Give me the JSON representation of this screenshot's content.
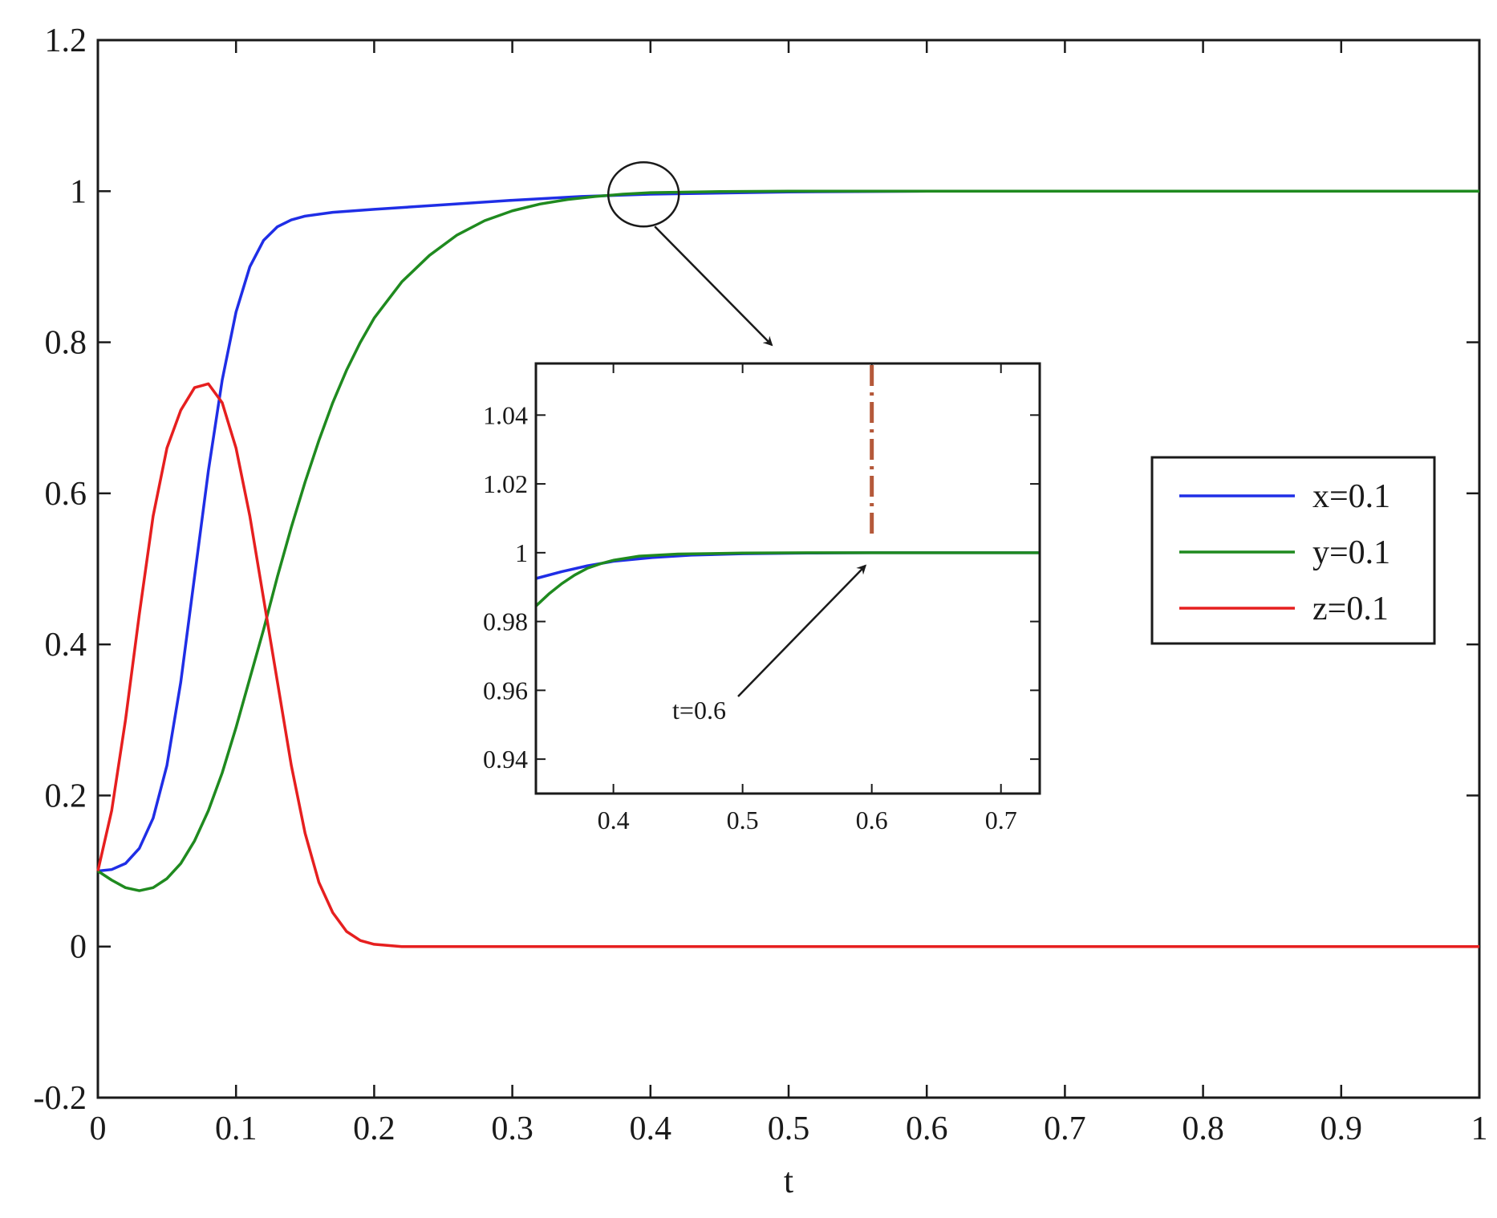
{
  "chart_data": {
    "type": "line",
    "title": "",
    "xlabel": "t",
    "ylabel": "",
    "xlim": [
      0,
      1
    ],
    "ylim": [
      -0.2,
      1.2
    ],
    "x_ticks": [
      "0",
      "0.1",
      "0.2",
      "0.3",
      "0.4",
      "0.5",
      "0.6",
      "0.7",
      "0.8",
      "0.9",
      "1"
    ],
    "y_ticks": [
      "-0.2",
      "0",
      "0.2",
      "0.4",
      "0.6",
      "0.8",
      "1",
      "1.2"
    ],
    "grid": false,
    "legend_position": "right",
    "colors": {
      "x": "#1f2ee6",
      "y": "#1f8a1f",
      "z": "#e61f1f",
      "marker": "#b5593a"
    },
    "series": [
      {
        "name": "x=0.1",
        "color": "#1f2ee6",
        "points": [
          [
            0,
            0.1
          ],
          [
            0.01,
            0.102
          ],
          [
            0.02,
            0.11
          ],
          [
            0.03,
            0.13
          ],
          [
            0.04,
            0.17
          ],
          [
            0.05,
            0.24
          ],
          [
            0.06,
            0.35
          ],
          [
            0.07,
            0.49
          ],
          [
            0.08,
            0.63
          ],
          [
            0.09,
            0.75
          ],
          [
            0.1,
            0.84
          ],
          [
            0.11,
            0.9
          ],
          [
            0.12,
            0.935
          ],
          [
            0.13,
            0.953
          ],
          [
            0.14,
            0.962
          ],
          [
            0.15,
            0.967
          ],
          [
            0.17,
            0.972
          ],
          [
            0.2,
            0.976
          ],
          [
            0.25,
            0.982
          ],
          [
            0.3,
            0.988
          ],
          [
            0.35,
            0.993
          ],
          [
            0.4,
            0.996
          ],
          [
            0.5,
            0.999
          ],
          [
            0.6,
            1.0
          ],
          [
            0.8,
            1.0
          ],
          [
            1.0,
            1.0
          ]
        ]
      },
      {
        "name": "y=0.1",
        "color": "#1f8a1f",
        "points": [
          [
            0,
            0.1
          ],
          [
            0.01,
            0.088
          ],
          [
            0.02,
            0.078
          ],
          [
            0.03,
            0.074
          ],
          [
            0.04,
            0.078
          ],
          [
            0.05,
            0.09
          ],
          [
            0.06,
            0.11
          ],
          [
            0.07,
            0.14
          ],
          [
            0.08,
            0.18
          ],
          [
            0.09,
            0.23
          ],
          [
            0.1,
            0.29
          ],
          [
            0.11,
            0.355
          ],
          [
            0.12,
            0.42
          ],
          [
            0.13,
            0.49
          ],
          [
            0.14,
            0.555
          ],
          [
            0.15,
            0.615
          ],
          [
            0.16,
            0.67
          ],
          [
            0.17,
            0.72
          ],
          [
            0.18,
            0.763
          ],
          [
            0.19,
            0.8
          ],
          [
            0.2,
            0.832
          ],
          [
            0.22,
            0.88
          ],
          [
            0.24,
            0.915
          ],
          [
            0.26,
            0.942
          ],
          [
            0.28,
            0.961
          ],
          [
            0.3,
            0.974
          ],
          [
            0.32,
            0.983
          ],
          [
            0.34,
            0.989
          ],
          [
            0.36,
            0.993
          ],
          [
            0.38,
            0.996
          ],
          [
            0.4,
            0.998
          ],
          [
            0.45,
            0.9995
          ],
          [
            0.5,
            1.0
          ],
          [
            0.7,
            1.0
          ],
          [
            1.0,
            1.0
          ]
        ]
      },
      {
        "name": "z=0.1",
        "color": "#e61f1f",
        "points": [
          [
            0,
            0.1
          ],
          [
            0.01,
            0.18
          ],
          [
            0.02,
            0.3
          ],
          [
            0.03,
            0.44
          ],
          [
            0.04,
            0.57
          ],
          [
            0.05,
            0.66
          ],
          [
            0.06,
            0.71
          ],
          [
            0.07,
            0.74
          ],
          [
            0.08,
            0.745
          ],
          [
            0.09,
            0.72
          ],
          [
            0.1,
            0.66
          ],
          [
            0.11,
            0.57
          ],
          [
            0.12,
            0.46
          ],
          [
            0.13,
            0.35
          ],
          [
            0.14,
            0.24
          ],
          [
            0.15,
            0.15
          ],
          [
            0.16,
            0.085
          ],
          [
            0.17,
            0.045
          ],
          [
            0.18,
            0.02
          ],
          [
            0.19,
            0.008
          ],
          [
            0.2,
            0.003
          ],
          [
            0.22,
            0.0
          ],
          [
            0.3,
            0.0
          ],
          [
            0.6,
            0.0
          ],
          [
            1.0,
            0.0
          ]
        ]
      }
    ],
    "inset": {
      "xlim": [
        0.34,
        0.73
      ],
      "ylim": [
        0.93,
        1.055
      ],
      "x_ticks": [
        "0.4",
        "0.5",
        "0.6",
        "0.7"
      ],
      "y_ticks": [
        "0.94",
        "0.96",
        "0.98",
        "1",
        "1.02",
        "1.04"
      ],
      "series": [
        {
          "name": "x=0.1",
          "color": "#1f2ee6",
          "points": [
            [
              0.34,
              0.9925
            ],
            [
              0.36,
              0.9945
            ],
            [
              0.38,
              0.9962
            ],
            [
              0.4,
              0.9975
            ],
            [
              0.43,
              0.9986
            ],
            [
              0.46,
              0.9993
            ],
            [
              0.5,
              0.9997
            ],
            [
              0.55,
              0.9999
            ],
            [
              0.6,
              1.0
            ],
            [
              0.73,
              1.0
            ]
          ]
        },
        {
          "name": "y=0.1",
          "color": "#1f8a1f",
          "points": [
            [
              0.34,
              0.9845
            ],
            [
              0.35,
              0.988
            ],
            [
              0.36,
              0.991
            ],
            [
              0.37,
              0.9935
            ],
            [
              0.38,
              0.9955
            ],
            [
              0.39,
              0.9968
            ],
            [
              0.4,
              0.9978
            ],
            [
              0.42,
              0.999
            ],
            [
              0.45,
              0.9996
            ],
            [
              0.5,
              0.9999
            ],
            [
              0.55,
              1.0
            ],
            [
              0.73,
              1.0
            ]
          ]
        }
      ],
      "marker_line_x": 0.6,
      "annotation": {
        "text": "t=0.6",
        "x": 0.6,
        "y": 0.9995
      }
    }
  }
}
